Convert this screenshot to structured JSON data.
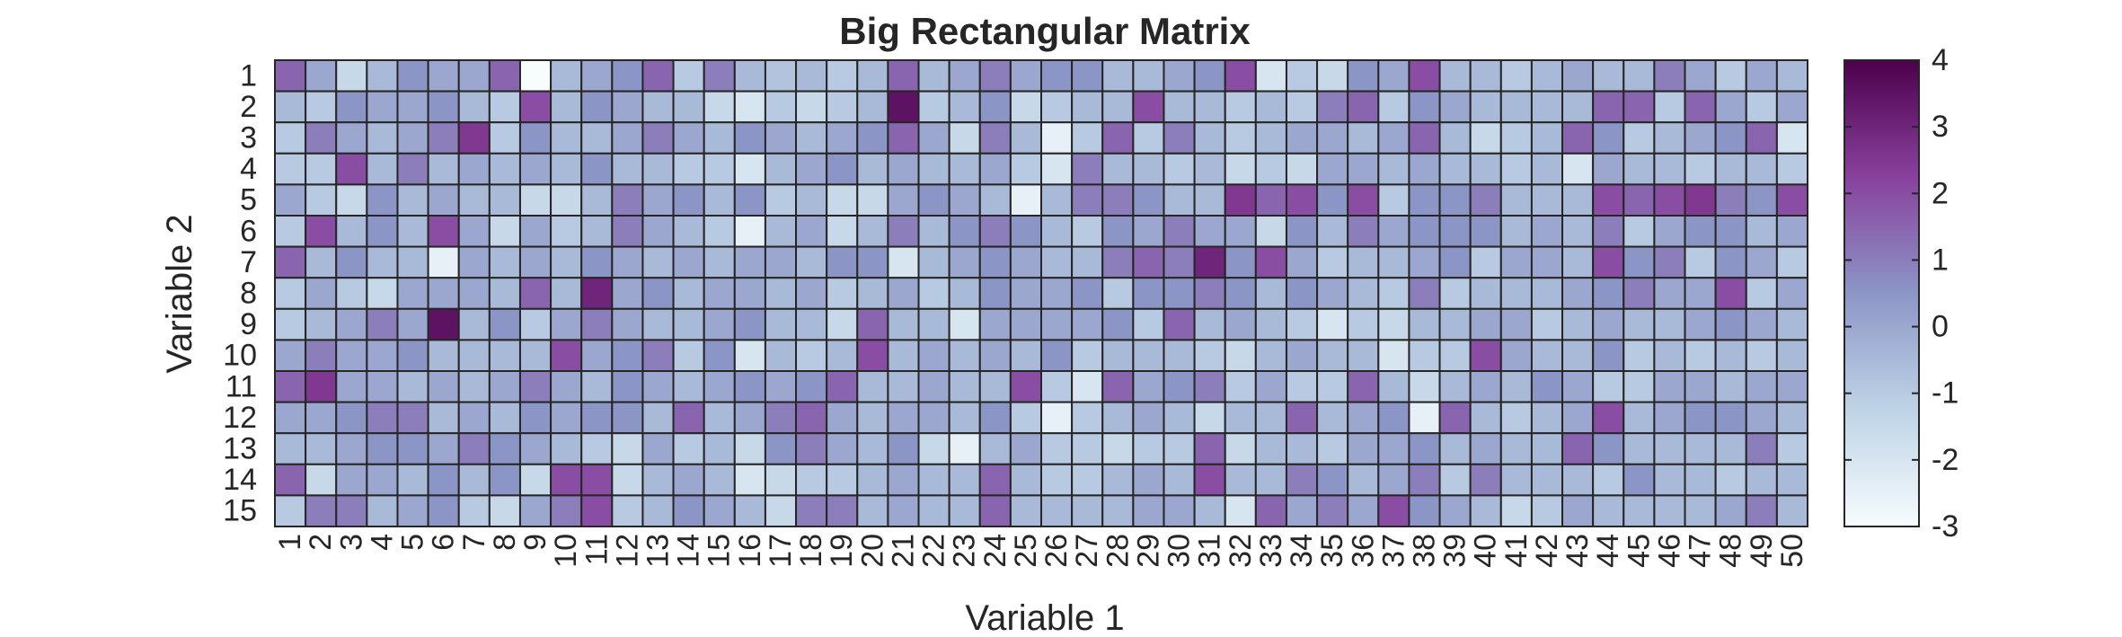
{
  "chart_data": {
    "type": "heatmap",
    "title": "Big Rectangular Matrix",
    "xlabel": "Variable 1",
    "ylabel": "Variable 2",
    "x_categories": [
      "1",
      "2",
      "3",
      "4",
      "5",
      "6",
      "7",
      "8",
      "9",
      "10",
      "11",
      "12",
      "13",
      "14",
      "15",
      "16",
      "17",
      "18",
      "19",
      "20",
      "21",
      "22",
      "23",
      "24",
      "25",
      "26",
      "27",
      "28",
      "29",
      "30",
      "31",
      "32",
      "33",
      "34",
      "35",
      "36",
      "37",
      "38",
      "39",
      "40",
      "41",
      "42",
      "43",
      "44",
      "45",
      "46",
      "47",
      "48",
      "49",
      "50"
    ],
    "y_categories": [
      "1",
      "2",
      "3",
      "4",
      "5",
      "6",
      "7",
      "8",
      "9",
      "10",
      "11",
      "12",
      "13",
      "14",
      "15"
    ],
    "colormap": "BuPu",
    "colormap_stops": [
      "#f7fcfd",
      "#bfd3e6",
      "#8c96c6",
      "#88419d",
      "#4d004b"
    ],
    "color_limits": [
      -3,
      4
    ],
    "colorbar_ticks": [
      "4",
      "3",
      "2",
      "1",
      "0",
      "-1",
      "-2",
      "-3"
    ],
    "values": [
      [
        1.5,
        0,
        -1.5,
        -0.5,
        0.5,
        0,
        0,
        1.5,
        -3,
        -0.5,
        0,
        0.5,
        1.5,
        -1,
        1,
        -0.5,
        -0.8,
        -0.5,
        -1,
        -0.5,
        1.5,
        -0.5,
        0,
        1,
        0,
        0.5,
        0.5,
        -0.5,
        -0.5,
        0,
        0.5,
        2,
        -2,
        -1,
        -1.5,
        0.5,
        0,
        2,
        -0.5,
        -0.5,
        -1,
        -0.5,
        0,
        -0.5,
        -0.5,
        1,
        0,
        -1,
        0,
        -0.5
      ],
      [
        -0.5,
        -1,
        0.5,
        0,
        0,
        0.5,
        -0.5,
        -1,
        2,
        -0.5,
        0.5,
        0,
        -0.5,
        -0.5,
        -1.5,
        -2,
        -1,
        -1.5,
        -1,
        -0.5,
        3.5,
        -1,
        -0.5,
        0.5,
        -1.5,
        -1,
        -0.5,
        -0.5,
        2,
        -0.5,
        -0.5,
        -1,
        -0.5,
        -1,
        1,
        1.5,
        -1,
        0.5,
        0,
        -0.5,
        -0.5,
        -0.5,
        -0.5,
        1.5,
        1.5,
        -1,
        1.5,
        0,
        -1,
        0
      ],
      [
        -1,
        1,
        0,
        -0.5,
        0,
        1,
        2.5,
        -1,
        0.5,
        -0.5,
        -0.5,
        0,
        1,
        0,
        -0.5,
        0.5,
        0,
        -0.5,
        0,
        0.5,
        1.5,
        0,
        -1.5,
        1,
        -0.5,
        -2.5,
        -1,
        1.5,
        -1,
        1,
        -0.5,
        -1,
        -0.5,
        0,
        0,
        -0.5,
        0,
        1.5,
        -0.5,
        -1.5,
        -1,
        -0.5,
        1.5,
        0.5,
        -1,
        -0.5,
        0,
        0.5,
        1.5,
        -2
      ],
      [
        -1,
        -1,
        2,
        -0.5,
        1,
        -0.5,
        0,
        -0.5,
        0,
        -0.5,
        0.5,
        -0.5,
        -0.5,
        -1,
        -1,
        -2,
        -0.5,
        0,
        0.5,
        -0.5,
        0,
        -0.5,
        -0.5,
        0,
        -1,
        -2,
        1,
        -0.5,
        -0.5,
        -1,
        -0.5,
        -1.5,
        -1,
        -1.5,
        0,
        0,
        -0.5,
        0,
        -0.5,
        -0.5,
        -1,
        -0.5,
        -2,
        0,
        -0.5,
        -0.5,
        -1,
        -0.5,
        -0.5,
        -1
      ],
      [
        0,
        -1,
        -1.5,
        0.5,
        -0.5,
        0,
        -0.5,
        -0.5,
        -1.5,
        -1.5,
        -0.5,
        1,
        0,
        0.5,
        -0.5,
        0.5,
        -1,
        -0.5,
        -1.5,
        -1.5,
        0,
        0.5,
        0,
        -0.5,
        -2.5,
        -0.5,
        1,
        1,
        0.5,
        -0.5,
        -0.5,
        2.5,
        1.5,
        2,
        0.5,
        2,
        -1,
        0.5,
        0.5,
        1,
        -0.5,
        -0.5,
        -0.5,
        2,
        1.5,
        2,
        2.5,
        1,
        0.5,
        2
      ],
      [
        -1,
        2,
        -0.5,
        0.5,
        -0.5,
        2,
        0,
        -1.5,
        0,
        -1,
        -0.5,
        1,
        0,
        -0.5,
        -1,
        -2.5,
        -0.5,
        0,
        -1.5,
        -0.5,
        1,
        -0.5,
        0.5,
        1,
        0.5,
        -0.5,
        -1,
        0.5,
        0,
        1,
        0,
        0,
        -1.5,
        0.5,
        -0.5,
        1,
        0,
        0.5,
        0.5,
        0.5,
        -0.5,
        0,
        -0.5,
        1,
        -1,
        0,
        0.5,
        0.5,
        -0.5,
        0
      ],
      [
        1.5,
        -0.5,
        0.5,
        -0.5,
        -0.5,
        -2.5,
        0,
        -0.5,
        0,
        -0.5,
        0.5,
        0,
        -0.5,
        0,
        -0.5,
        0,
        0,
        -0.5,
        0.5,
        0.5,
        -2,
        -0.5,
        0,
        0.5,
        0,
        -0.5,
        -0.5,
        1,
        1.5,
        1,
        3,
        0.5,
        2,
        0,
        -1,
        -0.5,
        -0.5,
        0,
        0.5,
        -1,
        0,
        0,
        -0.5,
        2,
        0.5,
        1,
        -1,
        0.5,
        0,
        -1
      ],
      [
        -1,
        0,
        -1,
        -1.5,
        0,
        0,
        0,
        -0.5,
        1.5,
        -0.5,
        3,
        0,
        0.5,
        -0.5,
        0,
        0,
        -0.5,
        0,
        -1,
        -0.5,
        0,
        -1,
        -0.5,
        0.5,
        0,
        0,
        0.5,
        -1,
        0.5,
        0.5,
        1,
        0.5,
        -0.5,
        0.5,
        0,
        -0.5,
        -1,
        1,
        -1,
        -0.5,
        -0.5,
        -0.5,
        0,
        0.5,
        1,
        0,
        0,
        2,
        -1,
        0
      ],
      [
        -1,
        -0.5,
        0,
        1,
        0,
        3.5,
        -0.5,
        0.5,
        -1,
        0,
        1,
        0,
        -0.5,
        -0.5,
        0,
        0.5,
        -0.5,
        -0.5,
        -1.5,
        1.5,
        -0.5,
        -0.5,
        -2,
        0,
        0,
        0,
        0,
        0.5,
        -1,
        1.5,
        -0.5,
        0,
        -0.5,
        -1,
        -2,
        -1,
        -1.5,
        -0.5,
        -0.5,
        0,
        0,
        -1,
        -0.5,
        0,
        -0.5,
        -0.5,
        0,
        0.5,
        0,
        -0.5
      ],
      [
        0,
        1,
        0,
        0,
        0.5,
        -0.5,
        -0.5,
        -0.5,
        -0.5,
        2,
        0,
        0.5,
        1,
        -1,
        0.5,
        -2,
        -0.5,
        -1,
        -0.5,
        2,
        -0.5,
        0,
        -0.5,
        0,
        -0.5,
        0.5,
        -1,
        -0.5,
        -0.5,
        -0.5,
        -1,
        -1.5,
        -0.5,
        0,
        -0.5,
        -0.5,
        -2,
        -1,
        -1,
        2,
        0,
        -0.5,
        -0.5,
        0.5,
        -1,
        -0.5,
        -1,
        -0.5,
        -1,
        -0.5
      ],
      [
        1.5,
        2.5,
        0,
        0,
        -0.5,
        0,
        -0.5,
        0,
        1,
        0,
        -0.5,
        0.5,
        0,
        -0.5,
        0,
        0.5,
        0,
        0.5,
        1.5,
        -0.5,
        -0.5,
        0,
        -0.5,
        -0.5,
        2,
        -1,
        -2,
        1.5,
        0,
        0.5,
        1,
        -1,
        0,
        -1,
        -1,
        1.5,
        -0.5,
        -1.5,
        -0.5,
        0,
        -0.5,
        0.5,
        0,
        -1,
        -1,
        0,
        0,
        -0.5,
        0,
        0
      ],
      [
        0,
        0,
        0.5,
        1,
        1,
        -0.5,
        0,
        -0.5,
        0.5,
        0,
        0.5,
        0.5,
        -0.5,
        1.5,
        -0.5,
        0,
        1,
        1.5,
        0,
        -0.5,
        0,
        0,
        -0.5,
        0.5,
        -1,
        -2.5,
        -1,
        -0.5,
        0,
        -0.5,
        -1.5,
        -0.5,
        -0.5,
        1.5,
        -0.5,
        0,
        0.5,
        -2.5,
        1.5,
        -0.5,
        -1,
        -0.5,
        0,
        2,
        -0.5,
        0,
        0.5,
        0.5,
        0,
        -0.5
      ],
      [
        -0.5,
        -0.5,
        0,
        0.5,
        0.5,
        0,
        1,
        0.5,
        0,
        -0.5,
        -1,
        -1.5,
        0,
        -1,
        -0.5,
        -1.5,
        0.5,
        1,
        0,
        -0.5,
        0.5,
        -1.5,
        -2.5,
        -0.5,
        0,
        -1,
        -1,
        -1.5,
        -1,
        -1,
        1.5,
        -1.5,
        -0.5,
        -0.5,
        -1,
        0,
        0,
        0.5,
        -0.5,
        0,
        -0.5,
        -0.5,
        1.5,
        0.5,
        -0.5,
        -0.5,
        -0.5,
        -0.5,
        1,
        -1
      ],
      [
        1.5,
        -1.5,
        0,
        0,
        -0.5,
        0.5,
        -0.5,
        0.5,
        -1.5,
        2,
        2,
        -1.5,
        -0.5,
        0,
        -0.5,
        -2,
        -1.5,
        -1,
        -1,
        -0.5,
        0,
        -0.5,
        -0.5,
        1.5,
        -0.5,
        -1,
        -1,
        -0.5,
        0,
        -0.5,
        2,
        -0.5,
        -0.5,
        1,
        0.5,
        -0.5,
        0,
        1,
        -1,
        1,
        -0.5,
        -0.5,
        -0.5,
        -1,
        0.5,
        -0.5,
        -0.5,
        -1,
        -0.5,
        -0.5
      ],
      [
        -1,
        1,
        1,
        -0.5,
        0,
        0.5,
        -1,
        -1.5,
        0,
        1,
        2,
        -1,
        -0.5,
        0.5,
        0,
        -0.5,
        -1.5,
        1,
        1,
        -0.5,
        0,
        -0.5,
        -0.5,
        1.5,
        -0.5,
        -0.5,
        -0.5,
        -0.5,
        0,
        0,
        -0.5,
        -2,
        1.5,
        0,
        1,
        0,
        2,
        0.5,
        0,
        -0.5,
        -1.5,
        -1,
        0,
        -0.5,
        -0.5,
        -0.5,
        -0.5,
        0,
        1,
        -0.5
      ]
    ]
  }
}
